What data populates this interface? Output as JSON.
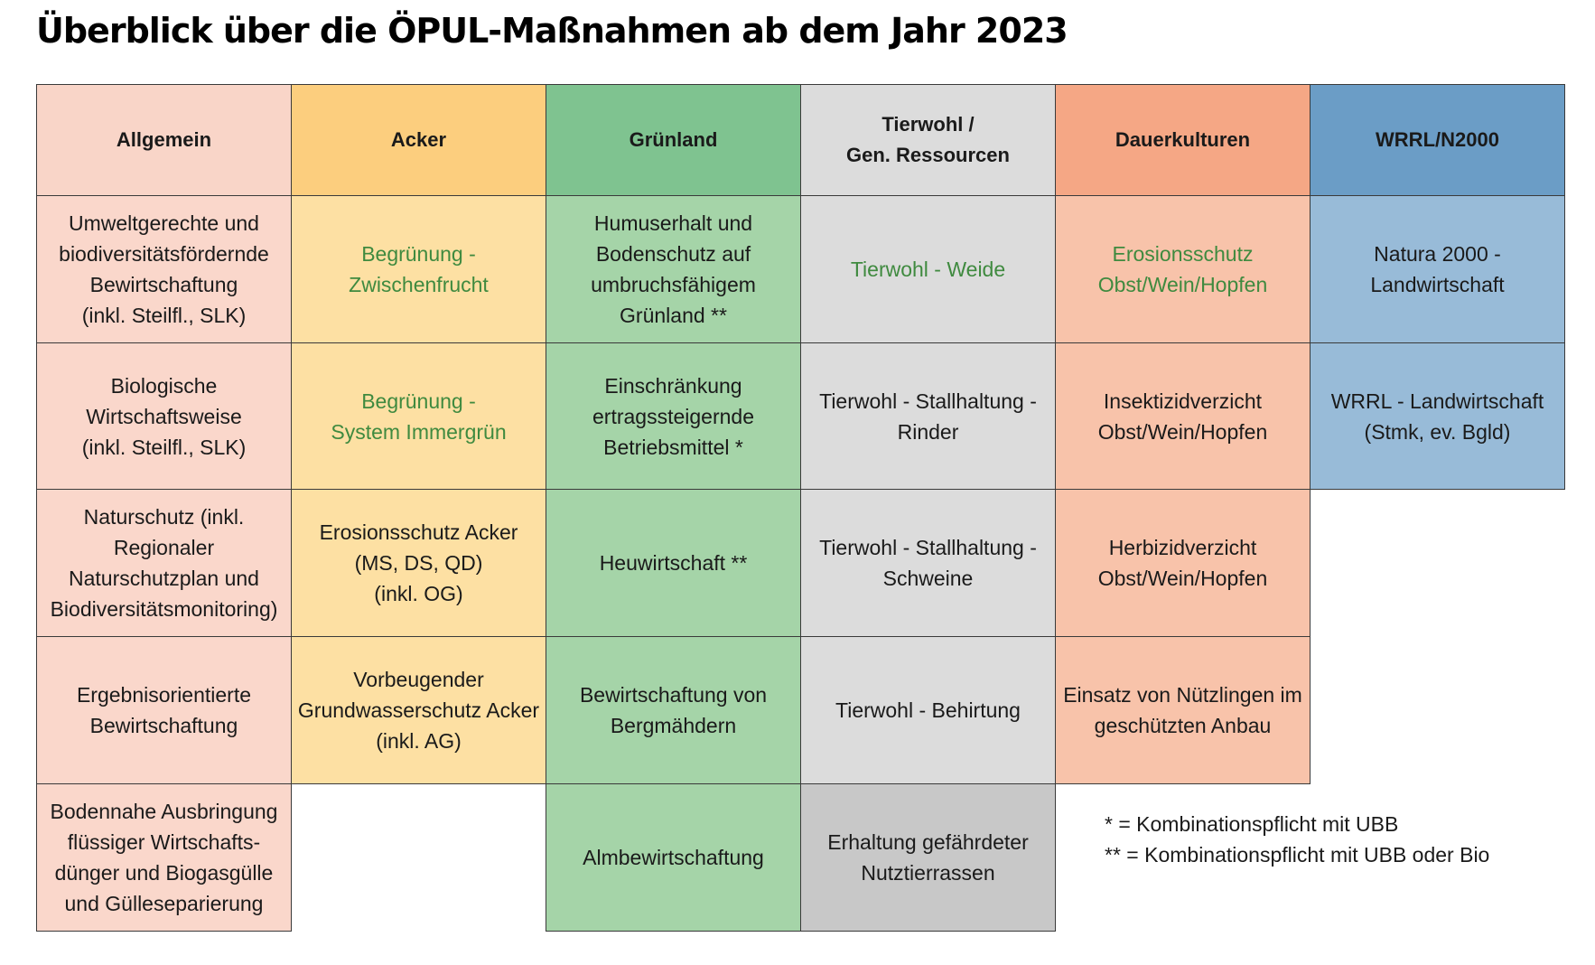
{
  "title": "Überblick über die ÖPUL-Maßnahmen ab dem Jahr 2023",
  "headers": {
    "allgemein": "Allgemein",
    "acker": "Acker",
    "gruenland": "Grünland",
    "tierwohl": "Tierwohl /\nGen. Ressourcen",
    "dauerkulturen": "Dauerkulturen",
    "wrrl": "WRRL/N2000"
  },
  "allgemein": [
    "Umweltgerechte und\nbiodiversitätsfördernde\nBewirtschaftung\n(inkl. Steilfl., SLK)",
    "Biologische\nWirtschaftsweise\n(inkl. Steilfl., SLK)",
    "Naturschutz (inkl.\nRegionaler\nNaturschutzplan und\nBiodiversitätsmonitoring)",
    "Ergebnisorientierte\nBewirtschaftung",
    "Bodennahe Ausbringung\nflüssiger Wirtschafts-\ndünger und Biogasgülle\nund Gülleseparierung"
  ],
  "acker": [
    "Begrünung -\nZwischenfrucht",
    "Begrünung -\nSystem Immergrün",
    "Erosionsschutz Acker\n(MS, DS, QD)\n(inkl. OG)",
    "Vorbeugender\nGrundwasserschutz Acker\n(inkl. AG)"
  ],
  "gruenland": [
    "Humuserhalt und\nBodenschutz auf\numbruchsfähigem\nGrünland **",
    "Einschränkung\nertragssteigernde\nBetriebsmittel *",
    "Heuwirtschaft **",
    "Bewirtschaftung von\nBergmähdern",
    "Almbewirtschaftung"
  ],
  "tierwohl": [
    "Tierwohl - Weide",
    "Tierwohl - Stallhaltung -\nRinder",
    "Tierwohl - Stallhaltung -\nSchweine",
    "Tierwohl - Behirtung",
    "Erhaltung gefährdeter\nNutztierrassen"
  ],
  "dauerkulturen": [
    "Erosionsschutz\nObst/Wein/Hopfen",
    "Insektizidverzicht\nObst/Wein/Hopfen",
    "Herbizidverzicht\nObst/Wein/Hopfen",
    "Einsatz von Nützlingen im\ngeschützten Anbau"
  ],
  "wrrl": [
    "Natura 2000 -\nLandwirtschaft",
    "WRRL - Landwirtschaft\n(Stmk, ev. Bgld)"
  ],
  "footnotes": [
    "* = Kombinationspflicht mit UBB",
    "** = Kombinationspflicht mit UBB oder Bio"
  ],
  "colors": {
    "green_text": "#3f8a3f",
    "allgemein": "#fad7cb",
    "acker": "#fde0a3",
    "gruenland": "#a5d4a8",
    "tierwohl": "#dcdcdc",
    "dauerkulturen": "#f8c3aa",
    "wrrl": "#98bbd8"
  }
}
